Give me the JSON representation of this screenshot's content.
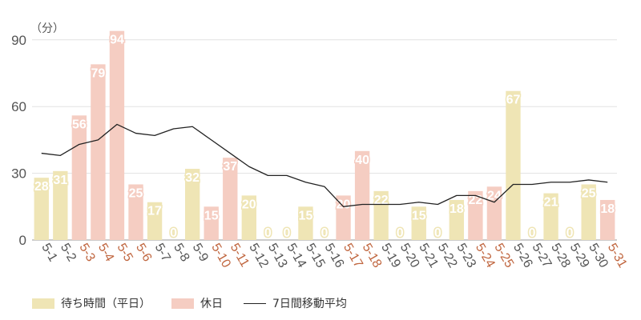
{
  "chart_data": {
    "type": "bar",
    "unit_label": "（分）",
    "ylim": [
      0,
      100
    ],
    "yticks": [
      0,
      30,
      60,
      90
    ],
    "categories": [
      "5-1",
      "5-2",
      "5-3",
      "5-4",
      "5-5",
      "5-6",
      "5-7",
      "5-8",
      "5-9",
      "5-10",
      "5-11",
      "5-12",
      "5-13",
      "5-14",
      "5-15",
      "5-16",
      "5-17",
      "5-18",
      "5-19",
      "5-20",
      "5-21",
      "5-22",
      "5-23",
      "5-24",
      "5-25",
      "5-26",
      "5-27",
      "5-28",
      "5-29",
      "5-30",
      "5-31"
    ],
    "holiday": [
      false,
      false,
      true,
      true,
      true,
      true,
      false,
      false,
      false,
      true,
      true,
      false,
      false,
      false,
      false,
      false,
      true,
      true,
      false,
      false,
      false,
      false,
      false,
      true,
      true,
      false,
      false,
      false,
      false,
      false,
      true
    ],
    "values": [
      28,
      31,
      56,
      79,
      94,
      25,
      17,
      0,
      32,
      15,
      37,
      20,
      0,
      0,
      15,
      0,
      20,
      40,
      22,
      0,
      15,
      0,
      18,
      22,
      24,
      67,
      0,
      21,
      0,
      25,
      18
    ],
    "moving_average": [
      39,
      38,
      43,
      45,
      52,
      48,
      47,
      50,
      51,
      45,
      39,
      33,
      29,
      29,
      26,
      24,
      15,
      16,
      16,
      16,
      17,
      16,
      20,
      20,
      17,
      25,
      25,
      26,
      26,
      27,
      26
    ],
    "series": [
      {
        "name": "待ち時間（平日）",
        "color": "#efe5b5"
      },
      {
        "name": "休日",
        "color": "#f5cdc2"
      },
      {
        "name": "7日間移動平均",
        "color": "#222222"
      }
    ],
    "grid": true,
    "legend_position": "bottom-left",
    "colors": {
      "weekday_label": "#555555",
      "holiday_label": "#c0663f",
      "value_label": "#ffffff"
    }
  }
}
